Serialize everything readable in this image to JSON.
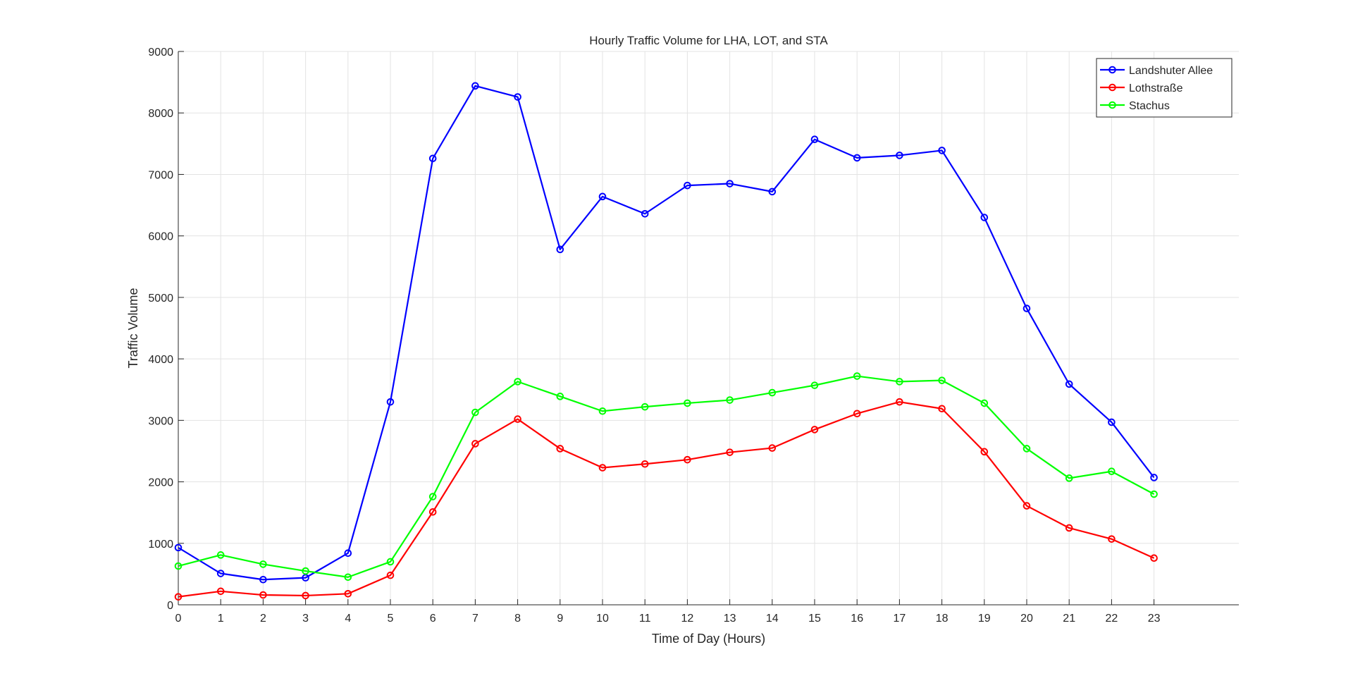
{
  "chart_data": {
    "type": "line",
    "title": "Hourly Traffic Volume for LHA, LOT, and STA",
    "xlabel": "Time of Day (Hours)",
    "ylabel": "Traffic Volume",
    "xlim": [
      0,
      25
    ],
    "ylim": [
      0,
      9000
    ],
    "x_ticks": [
      0,
      1,
      2,
      3,
      4,
      5,
      6,
      7,
      8,
      9,
      10,
      11,
      12,
      13,
      14,
      15,
      16,
      17,
      18,
      19,
      20,
      21,
      22,
      23
    ],
    "y_ticks": [
      0,
      1000,
      2000,
      3000,
      4000,
      5000,
      6000,
      7000,
      8000,
      9000
    ],
    "grid": true,
    "legend_position": "top-right",
    "x": [
      0,
      1,
      2,
      3,
      4,
      5,
      6,
      7,
      8,
      9,
      10,
      11,
      12,
      13,
      14,
      15,
      16,
      17,
      18,
      19,
      20,
      21,
      22,
      23
    ],
    "series": [
      {
        "name": "Landshuter Allee",
        "color": "#0000ff",
        "marker": "circle",
        "values": [
          930,
          510,
          410,
          440,
          840,
          3300,
          7260,
          8440,
          8260,
          5780,
          6640,
          6360,
          6820,
          6850,
          6720,
          7570,
          7270,
          7310,
          7390,
          6300,
          4820,
          3590,
          2970,
          2070
        ]
      },
      {
        "name": "Lothstraße",
        "color": "#ff0000",
        "marker": "circle",
        "values": [
          130,
          220,
          160,
          150,
          180,
          480,
          1510,
          2620,
          3020,
          2540,
          2230,
          2290,
          2360,
          2480,
          2550,
          2850,
          3110,
          3300,
          3190,
          2490,
          1610,
          1250,
          1070,
          760
        ]
      },
      {
        "name": "Stachus",
        "color": "#00ff00",
        "marker": "circle",
        "values": [
          630,
          810,
          660,
          550,
          450,
          700,
          1760,
          3130,
          3630,
          3390,
          3150,
          3220,
          3280,
          3330,
          3450,
          3570,
          3720,
          3630,
          3650,
          3280,
          2540,
          2060,
          2170,
          1800
        ]
      }
    ]
  }
}
